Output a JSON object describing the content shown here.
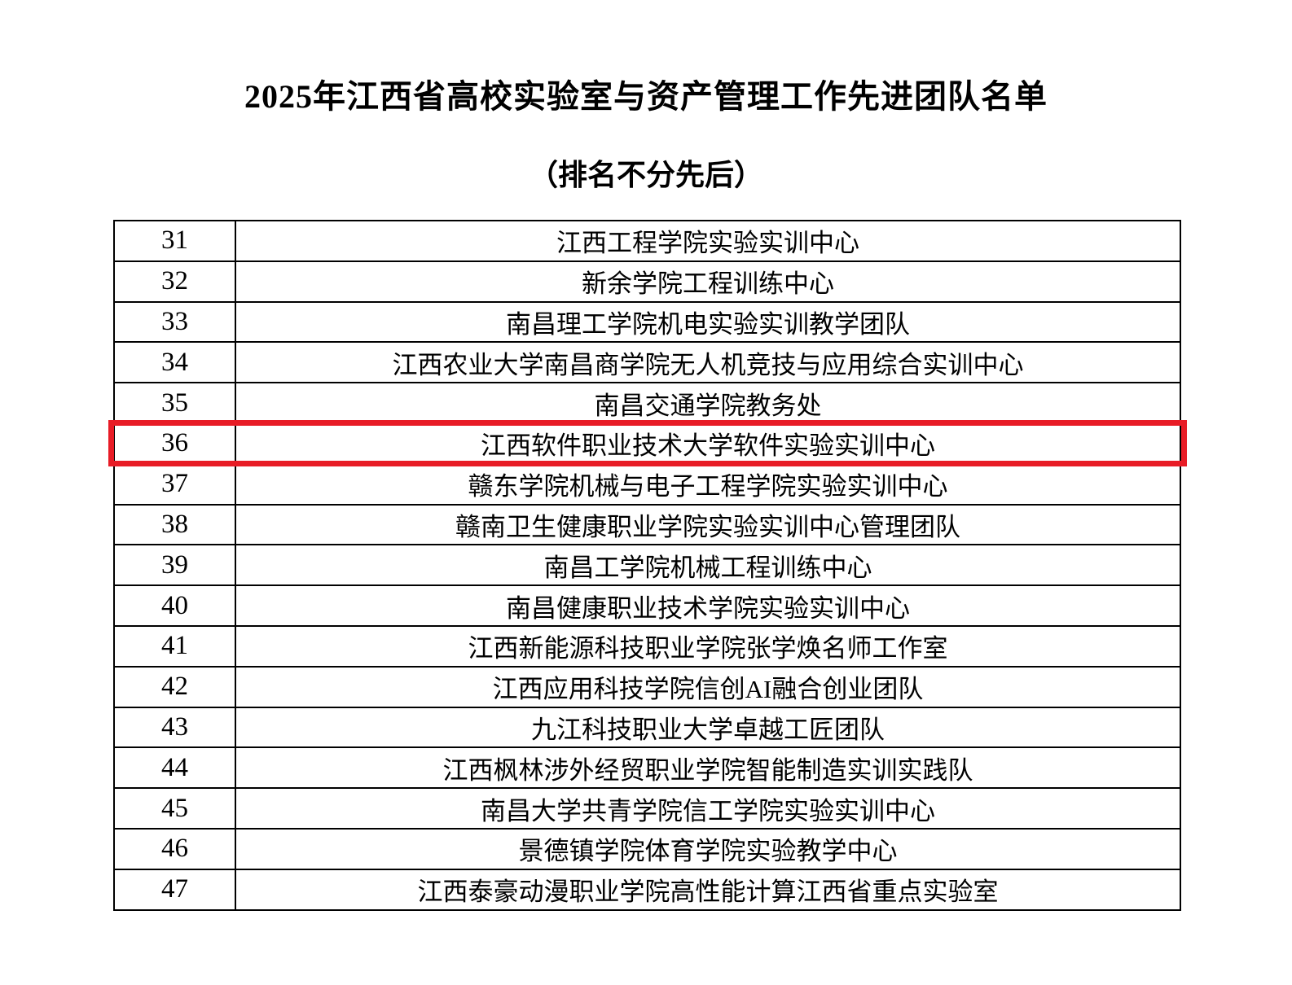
{
  "document": {
    "title": "2025年江西省高校实验室与资产管理工作先进团队名单",
    "subtitle": "（排名不分先后）"
  },
  "table": {
    "rows": [
      {
        "rank": "31",
        "team": "江西工程学院实验实训中心"
      },
      {
        "rank": "32",
        "team": "新余学院工程训练中心"
      },
      {
        "rank": "33",
        "team": "南昌理工学院机电实验实训教学团队"
      },
      {
        "rank": "34",
        "team": "江西农业大学南昌商学院无人机竞技与应用综合实训中心"
      },
      {
        "rank": "35",
        "team": "南昌交通学院教务处"
      },
      {
        "rank": "36",
        "team": "江西软件职业技术大学软件实验实训中心"
      },
      {
        "rank": "37",
        "team": "赣东学院机械与电子工程学院实验实训中心"
      },
      {
        "rank": "38",
        "team": "赣南卫生健康职业学院实验实训中心管理团队"
      },
      {
        "rank": "39",
        "team": "南昌工学院机械工程训练中心"
      },
      {
        "rank": "40",
        "team": "南昌健康职业技术学院实验实训中心"
      },
      {
        "rank": "41",
        "team": "江西新能源科技职业学院张学焕名师工作室"
      },
      {
        "rank": "42",
        "team": "江西应用科技学院信创AI融合创业团队"
      },
      {
        "rank": "43",
        "team": "九江科技职业大学卓越工匠团队"
      },
      {
        "rank": "44",
        "team": "江西枫林涉外经贸职业学院智能制造实训实践队"
      },
      {
        "rank": "45",
        "team": "南昌大学共青学院信工学院实验实训中心"
      },
      {
        "rank": "46",
        "team": "景德镇学院体育学院实验教学中心"
      },
      {
        "rank": "47",
        "team": "江西泰豪动漫职业学院高性能计算江西省重点实验室"
      }
    ]
  },
  "highlight": {
    "highlighted_rank": "36",
    "border_color": "#e81c26"
  }
}
